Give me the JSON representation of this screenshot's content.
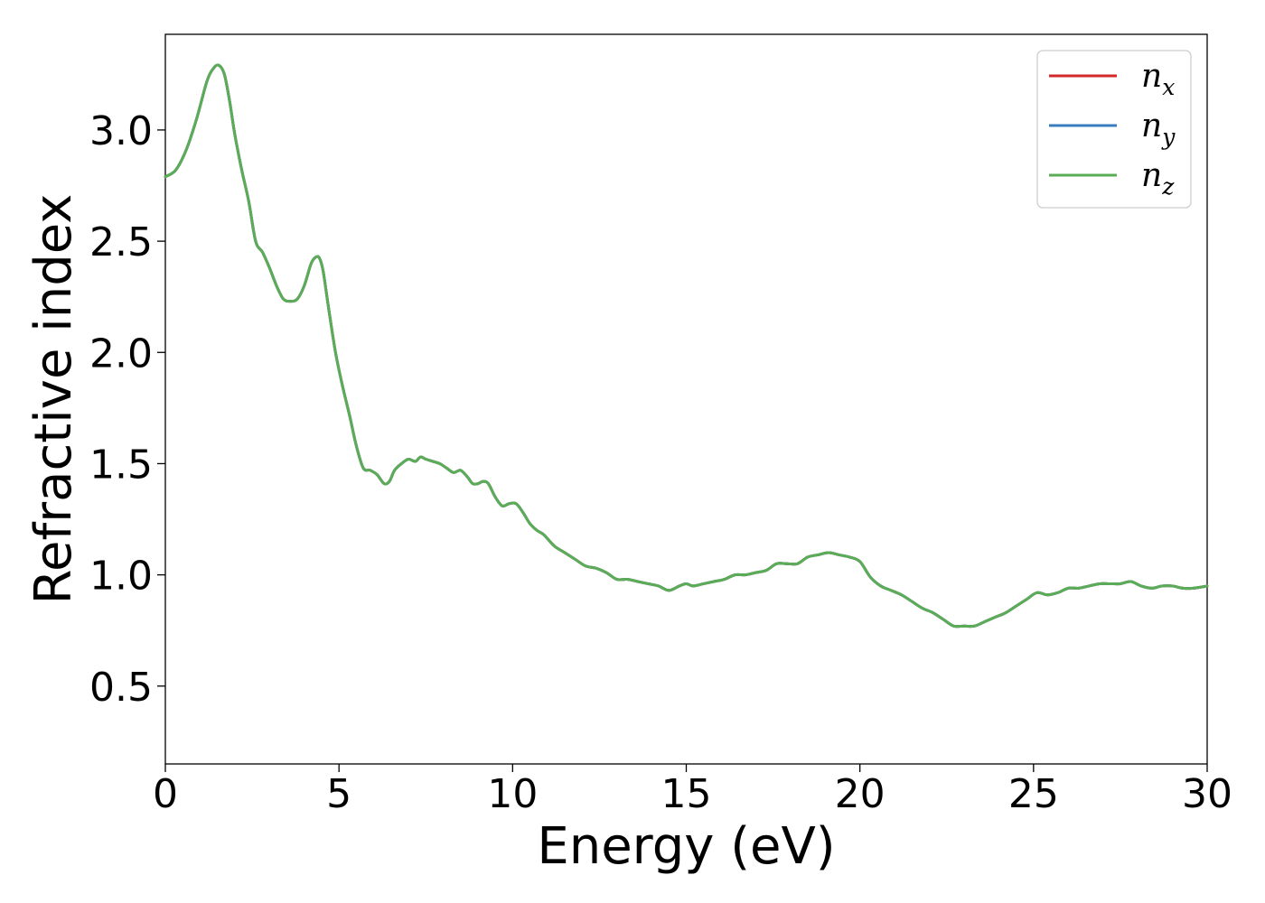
{
  "chart_data": {
    "type": "line",
    "title": "",
    "xlabel": "Energy (eV)",
    "ylabel": "Refractive index",
    "xlim": [
      0,
      30
    ],
    "ylim": [
      0.15,
      3.43
    ],
    "xticks": [
      0,
      5,
      10,
      15,
      20,
      25,
      30
    ],
    "yticks": [
      0.5,
      1.0,
      1.5,
      2.0,
      2.5,
      3.0
    ],
    "xtick_labels": [
      "0",
      "5",
      "10",
      "15",
      "20",
      "25",
      "30"
    ],
    "ytick_labels": [
      "0.5",
      "1.0",
      "1.5",
      "2.0",
      "2.5",
      "3.0"
    ],
    "grid": false,
    "legend_position": "top-right",
    "x": [
      0,
      0.3,
      0.6,
      0.9,
      1.2,
      1.4,
      1.55,
      1.7,
      1.85,
      2.0,
      2.2,
      2.4,
      2.6,
      2.8,
      3.0,
      3.2,
      3.4,
      3.6,
      3.8,
      4.0,
      4.2,
      4.35,
      4.45,
      4.55,
      4.7,
      4.9,
      5.1,
      5.3,
      5.5,
      5.7,
      5.9,
      6.1,
      6.3,
      6.45,
      6.6,
      6.8,
      7.0,
      7.2,
      7.35,
      7.5,
      7.7,
      7.9,
      8.1,
      8.3,
      8.5,
      8.7,
      8.85,
      9.0,
      9.15,
      9.3,
      9.5,
      9.7,
      9.9,
      10.1,
      10.3,
      10.5,
      10.7,
      10.9,
      11.2,
      11.5,
      11.8,
      12.1,
      12.4,
      12.7,
      13.0,
      13.3,
      13.6,
      13.9,
      14.2,
      14.5,
      14.8,
      15.0,
      15.2,
      15.5,
      15.8,
      16.1,
      16.4,
      16.7,
      17.0,
      17.3,
      17.6,
      17.9,
      18.2,
      18.5,
      18.8,
      19.1,
      19.4,
      19.7,
      20.0,
      20.3,
      20.6,
      20.9,
      21.2,
      21.5,
      21.8,
      22.1,
      22.4,
      22.7,
      23.0,
      23.3,
      23.6,
      23.9,
      24.2,
      24.5,
      24.8,
      25.1,
      25.4,
      25.7,
      26.0,
      26.3,
      26.6,
      26.9,
      27.2,
      27.5,
      27.8,
      28.1,
      28.4,
      28.7,
      29.0,
      29.3,
      29.6,
      30.0
    ],
    "series": [
      {
        "name": "n_x",
        "values": [
          2.79,
          2.82,
          2.91,
          3.05,
          3.22,
          3.28,
          3.29,
          3.25,
          3.13,
          2.98,
          2.82,
          2.68,
          2.5,
          2.45,
          2.38,
          2.3,
          2.24,
          2.23,
          2.24,
          2.3,
          2.4,
          2.43,
          2.42,
          2.36,
          2.2,
          2.0,
          1.85,
          1.72,
          1.58,
          1.48,
          1.47,
          1.45,
          1.41,
          1.42,
          1.47,
          1.5,
          1.52,
          1.51,
          1.53,
          1.52,
          1.51,
          1.5,
          1.48,
          1.46,
          1.47,
          1.44,
          1.41,
          1.41,
          1.42,
          1.41,
          1.35,
          1.31,
          1.32,
          1.32,
          1.28,
          1.23,
          1.2,
          1.18,
          1.13,
          1.1,
          1.07,
          1.04,
          1.03,
          1.01,
          0.98,
          0.98,
          0.97,
          0.96,
          0.95,
          0.93,
          0.95,
          0.96,
          0.95,
          0.96,
          0.97,
          0.98,
          1.0,
          1.0,
          1.01,
          1.02,
          1.05,
          1.05,
          1.05,
          1.08,
          1.09,
          1.1,
          1.09,
          1.08,
          1.06,
          0.99,
          0.95,
          0.93,
          0.91,
          0.88,
          0.85,
          0.83,
          0.8,
          0.77,
          0.77,
          0.77,
          0.79,
          0.81,
          0.83,
          0.86,
          0.89,
          0.92,
          0.91,
          0.92,
          0.94,
          0.94,
          0.95,
          0.96,
          0.96,
          0.96,
          0.97,
          0.95,
          0.94,
          0.95,
          0.95,
          0.94,
          0.94,
          0.95
        ],
        "color": "#d62728"
      },
      {
        "name": "n_y",
        "values": [
          2.79,
          2.82,
          2.91,
          3.05,
          3.22,
          3.28,
          3.29,
          3.25,
          3.13,
          2.98,
          2.82,
          2.68,
          2.5,
          2.45,
          2.38,
          2.3,
          2.24,
          2.23,
          2.24,
          2.3,
          2.4,
          2.43,
          2.42,
          2.36,
          2.2,
          2.0,
          1.85,
          1.72,
          1.58,
          1.48,
          1.47,
          1.45,
          1.41,
          1.42,
          1.47,
          1.5,
          1.52,
          1.51,
          1.53,
          1.52,
          1.51,
          1.5,
          1.48,
          1.46,
          1.47,
          1.44,
          1.41,
          1.41,
          1.42,
          1.41,
          1.35,
          1.31,
          1.32,
          1.32,
          1.28,
          1.23,
          1.2,
          1.18,
          1.13,
          1.1,
          1.07,
          1.04,
          1.03,
          1.01,
          0.98,
          0.98,
          0.97,
          0.96,
          0.95,
          0.93,
          0.95,
          0.96,
          0.95,
          0.96,
          0.97,
          0.98,
          1.0,
          1.0,
          1.01,
          1.02,
          1.05,
          1.05,
          1.05,
          1.08,
          1.09,
          1.1,
          1.09,
          1.08,
          1.06,
          0.99,
          0.95,
          0.93,
          0.91,
          0.88,
          0.85,
          0.83,
          0.8,
          0.77,
          0.77,
          0.77,
          0.79,
          0.81,
          0.83,
          0.86,
          0.89,
          0.92,
          0.91,
          0.92,
          0.94,
          0.94,
          0.95,
          0.96,
          0.96,
          0.96,
          0.97,
          0.95,
          0.94,
          0.95,
          0.95,
          0.94,
          0.94,
          0.95
        ],
        "color": "#3a7dbd"
      },
      {
        "name": "n_z",
        "values": [
          2.79,
          2.82,
          2.91,
          3.05,
          3.22,
          3.28,
          3.29,
          3.25,
          3.13,
          2.98,
          2.82,
          2.68,
          2.5,
          2.45,
          2.38,
          2.3,
          2.24,
          2.23,
          2.24,
          2.3,
          2.4,
          2.43,
          2.42,
          2.36,
          2.2,
          2.0,
          1.85,
          1.72,
          1.58,
          1.48,
          1.47,
          1.45,
          1.41,
          1.42,
          1.47,
          1.5,
          1.52,
          1.51,
          1.53,
          1.52,
          1.51,
          1.5,
          1.48,
          1.46,
          1.47,
          1.44,
          1.41,
          1.41,
          1.42,
          1.41,
          1.35,
          1.31,
          1.32,
          1.32,
          1.28,
          1.23,
          1.2,
          1.18,
          1.13,
          1.1,
          1.07,
          1.04,
          1.03,
          1.01,
          0.98,
          0.98,
          0.97,
          0.96,
          0.95,
          0.93,
          0.95,
          0.96,
          0.95,
          0.96,
          0.97,
          0.98,
          1.0,
          1.0,
          1.01,
          1.02,
          1.05,
          1.05,
          1.05,
          1.08,
          1.09,
          1.1,
          1.09,
          1.08,
          1.06,
          0.99,
          0.95,
          0.93,
          0.91,
          0.88,
          0.85,
          0.83,
          0.8,
          0.77,
          0.77,
          0.77,
          0.79,
          0.81,
          0.83,
          0.86,
          0.89,
          0.92,
          0.91,
          0.92,
          0.94,
          0.94,
          0.95,
          0.96,
          0.96,
          0.96,
          0.97,
          0.95,
          0.94,
          0.95,
          0.95,
          0.94,
          0.94,
          0.95
        ],
        "color": "#5aad56"
      }
    ],
    "legend": [
      {
        "main": "n",
        "sub": "x"
      },
      {
        "main": "n",
        "sub": "y"
      },
      {
        "main": "n",
        "sub": "z"
      }
    ]
  }
}
